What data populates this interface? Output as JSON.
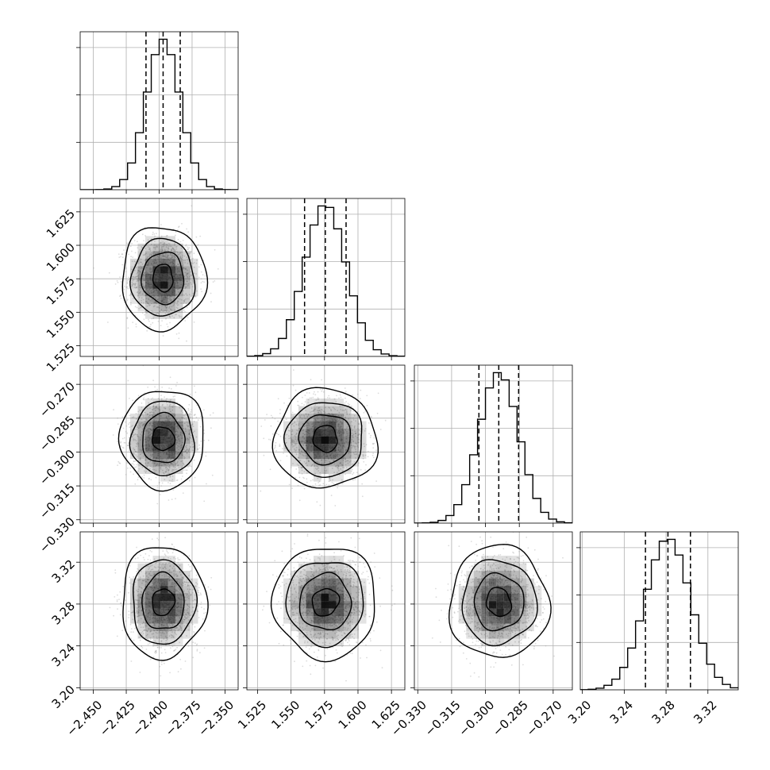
{
  "chart_data": {
    "type": "corner",
    "grid": true,
    "parameters": [
      {
        "index": 0,
        "mean": -2.397,
        "sd": 0.0128,
        "quantiles": [
          -2.41,
          -2.397,
          -2.384
        ],
        "range": [
          -2.46,
          -2.34
        ],
        "ticks": [
          -2.45,
          -2.425,
          -2.4,
          -2.375,
          -2.35
        ],
        "tick_labels": [
          "−2.450",
          "−2.425",
          "−2.400",
          "−2.375",
          "−2.350"
        ]
      },
      {
        "index": 1,
        "mean": 1.5756,
        "sd": 0.0154,
        "quantiles": [
          1.5601,
          1.5756,
          1.5911
        ],
        "range": [
          1.517,
          1.635
        ],
        "ticks": [
          1.525,
          1.55,
          1.575,
          1.6,
          1.625
        ],
        "tick_labels": [
          "1.525",
          "1.550",
          "1.575",
          "1.600",
          "1.625"
        ]
      },
      {
        "index": 2,
        "mean": -0.2941,
        "sd": 0.0088,
        "quantiles": [
          -0.3029,
          -0.2941,
          -0.2853
        ],
        "range": [
          -0.3315,
          -0.2615
        ],
        "ticks": [
          -0.33,
          -0.315,
          -0.3,
          -0.285,
          -0.27
        ],
        "tick_labels": [
          "−0.330",
          "−0.315",
          "−0.300",
          "−0.285",
          "−0.270"
        ]
      },
      {
        "index": 3,
        "mean": 3.2818,
        "sd": 0.0215,
        "quantiles": [
          3.2603,
          3.2818,
          3.3033
        ],
        "range": [
          3.198,
          3.349
        ],
        "ticks": [
          3.2,
          3.24,
          3.28,
          3.32
        ],
        "tick_labels": [
          "3.20",
          "3.24",
          "3.28",
          "3.32"
        ]
      }
    ],
    "histogram_bins": 20,
    "contour_levels_sigma": [
      0.5,
      1.0,
      1.5,
      2.0
    ],
    "colors": {
      "line": "#000000",
      "grid": "#b0b0b0",
      "points": "#9a9a9a",
      "density": "#000000"
    }
  }
}
